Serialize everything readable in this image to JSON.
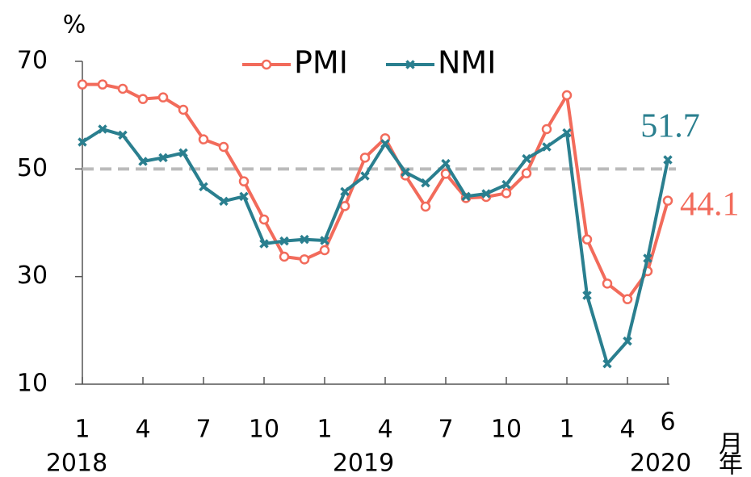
{
  "chart_data": {
    "type": "line",
    "y_label": "%",
    "x_label": "月",
    "year_label": "年",
    "categories": [
      "1",
      null,
      null,
      "4",
      null,
      null,
      "7",
      null,
      null,
      "10",
      null,
      null,
      "1",
      null,
      null,
      "4",
      null,
      null,
      "7",
      null,
      null,
      "10",
      null,
      null,
      "1",
      null,
      null,
      "4",
      null,
      "6"
    ],
    "years": [
      "2018",
      "2019",
      "2020"
    ],
    "series": [
      {
        "name": "PMI",
        "color": "#f26b5b",
        "marker": "circle",
        "values": [
          65.7,
          65.7,
          64.9,
          63.0,
          63.3,
          61.0,
          55.5,
          54.1,
          47.7,
          40.6,
          33.7,
          33.2,
          34.9,
          43.1,
          52.1,
          55.7,
          48.8,
          43.0,
          49.1,
          44.6,
          44.8,
          45.5,
          49.2,
          57.4,
          63.7,
          36.9,
          28.7,
          25.8,
          31.0,
          44.1
        ]
      },
      {
        "name": "NMI",
        "color": "#2a7f8f",
        "marker": "x",
        "values": [
          55.0,
          57.4,
          56.3,
          51.4,
          52.1,
          53.0,
          46.7,
          44.0,
          44.9,
          36.1,
          36.6,
          36.9,
          36.7,
          45.8,
          48.7,
          54.7,
          49.4,
          47.4,
          51.0,
          44.9,
          45.4,
          47.1,
          51.9,
          54.1,
          56.7,
          26.5,
          13.8,
          18.0,
          33.4,
          51.7
        ]
      }
    ],
    "ylim": [
      10,
      70
    ],
    "yticks": [
      10,
      30,
      50,
      70
    ],
    "reference_line": 50,
    "reference_color": "#bbbbbb",
    "legend": "top"
  }
}
